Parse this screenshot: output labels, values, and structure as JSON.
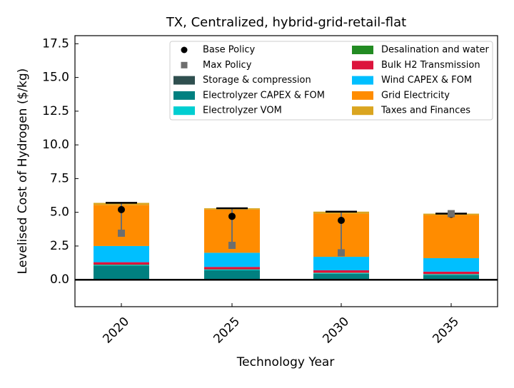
{
  "chart_data": {
    "type": "bar",
    "stacked": true,
    "title": "TX, Centralized, hybrid-grid-retail-flat",
    "x_label": "Technology Year",
    "y_label": "Levelised Cost of Hydrogen ($/kg)",
    "categories": [
      "2020",
      "2025",
      "2030",
      "2035"
    ],
    "series": [
      {
        "name": "Storage & compression",
        "color": "#2f4f4f",
        "values": [
          0.05,
          0.05,
          0.05,
          0.05
        ]
      },
      {
        "name": "Electrolyzer CAPEX & FOM",
        "color": "#008080",
        "values": [
          1.0,
          0.65,
          0.4,
          0.3
        ]
      },
      {
        "name": "Electrolyzer VOM",
        "color": "#00ced1",
        "values": [
          0.05,
          0.05,
          0.05,
          0.05
        ]
      },
      {
        "name": "Desalination and water",
        "color": "#228b22",
        "values": [
          0.02,
          0.02,
          0.02,
          0.02
        ]
      },
      {
        "name": "Bulk H2 Transmission",
        "color": "#dc143c",
        "values": [
          0.18,
          0.18,
          0.18,
          0.18
        ]
      },
      {
        "name": "Wind CAPEX & FOM",
        "color": "#00bfff",
        "values": [
          1.2,
          1.05,
          1.0,
          1.0
        ]
      },
      {
        "name": "Grid Electricity",
        "color": "#ff8c00",
        "values": [
          3.05,
          3.2,
          3.2,
          3.2
        ]
      },
      {
        "name": "Taxes and Finances",
        "color": "#daa520",
        "values": [
          0.15,
          0.1,
          0.15,
          0.1
        ]
      }
    ],
    "points": [
      {
        "name": "Base Policy",
        "color": "#000000",
        "marker": "circle",
        "values": [
          5.2,
          4.7,
          4.4,
          4.85
        ]
      },
      {
        "name": "Max Policy",
        "color": "#6e6e6e",
        "marker": "square",
        "values": [
          3.45,
          2.55,
          2.0,
          4.9
        ]
      }
    ],
    "ylim": [
      -2,
      18.1
    ],
    "yticks": [
      {
        "value": 0,
        "label": "0.0"
      },
      2.5,
      {
        "value": 5,
        "label": "5.0"
      },
      7.5,
      {
        "value": 10,
        "label": "10.0"
      },
      12.5,
      {
        "value": 15,
        "label": "15.0"
      },
      17.5
    ],
    "legend": "upper right",
    "legend_columns": 2
  }
}
